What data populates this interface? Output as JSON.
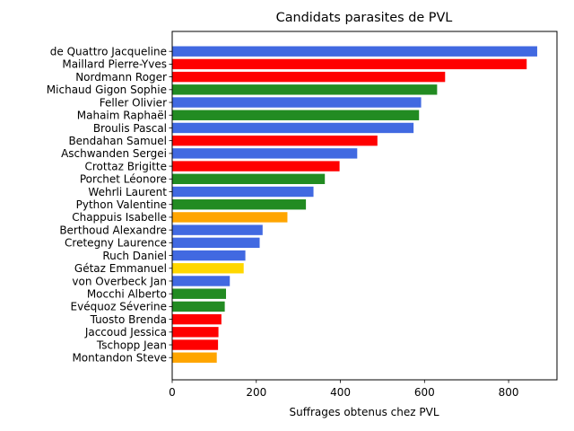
{
  "chart_data": {
    "type": "bar",
    "orientation": "horizontal",
    "title": "Candidats parasites de PVL",
    "xlabel": "Suffrages obtenus chez PVL",
    "ylabel": "",
    "xlim": [
      0,
      915
    ],
    "x_ticks": [
      0,
      200,
      400,
      600,
      800
    ],
    "x_tick_labels": [
      "0",
      "200",
      "400",
      "600",
      "800"
    ],
    "grid": false,
    "legend": "none",
    "colors": {
      "blue": "#4169e1",
      "red": "#ff0000",
      "green": "#228b22",
      "orange": "#ffa500",
      "gold": "#ffd700"
    },
    "bars": [
      {
        "label": "de Quattro Jacqueline",
        "value": 868,
        "color": "blue"
      },
      {
        "label": "Maillard Pierre-Yves",
        "value": 843,
        "color": "red"
      },
      {
        "label": "Nordmann Roger",
        "value": 649,
        "color": "red"
      },
      {
        "label": "Michaud Gigon Sophie",
        "value": 630,
        "color": "green"
      },
      {
        "label": "Feller Olivier",
        "value": 592,
        "color": "blue"
      },
      {
        "label": "Mahaim Raphaël",
        "value": 587,
        "color": "green"
      },
      {
        "label": "Broulis Pascal",
        "value": 574,
        "color": "blue"
      },
      {
        "label": "Bendahan Samuel",
        "value": 488,
        "color": "red"
      },
      {
        "label": "Aschwanden Sergei",
        "value": 440,
        "color": "blue"
      },
      {
        "label": "Crottaz Brigitte",
        "value": 398,
        "color": "red"
      },
      {
        "label": "Porchet Léonore",
        "value": 363,
        "color": "green"
      },
      {
        "label": "Wehrli Laurent",
        "value": 336,
        "color": "blue"
      },
      {
        "label": "Python Valentine",
        "value": 318,
        "color": "green"
      },
      {
        "label": "Chappuis Isabelle",
        "value": 274,
        "color": "orange"
      },
      {
        "label": "Berthoud Alexandre",
        "value": 215,
        "color": "blue"
      },
      {
        "label": "Cretegny Laurence",
        "value": 208,
        "color": "blue"
      },
      {
        "label": "Ruch Daniel",
        "value": 174,
        "color": "blue"
      },
      {
        "label": "Gétaz Emmanuel",
        "value": 170,
        "color": "gold"
      },
      {
        "label": "von Overbeck Jan",
        "value": 137,
        "color": "blue"
      },
      {
        "label": "Mocchi Alberto",
        "value": 128,
        "color": "green"
      },
      {
        "label": "Evéquoz Séverine",
        "value": 125,
        "color": "green"
      },
      {
        "label": "Tuosto Brenda",
        "value": 117,
        "color": "red"
      },
      {
        "label": "Jaccoud Jessica",
        "value": 110,
        "color": "red"
      },
      {
        "label": "Tschopp Jean",
        "value": 109,
        "color": "red"
      },
      {
        "label": "Montandon Steve",
        "value": 106,
        "color": "orange"
      }
    ]
  }
}
